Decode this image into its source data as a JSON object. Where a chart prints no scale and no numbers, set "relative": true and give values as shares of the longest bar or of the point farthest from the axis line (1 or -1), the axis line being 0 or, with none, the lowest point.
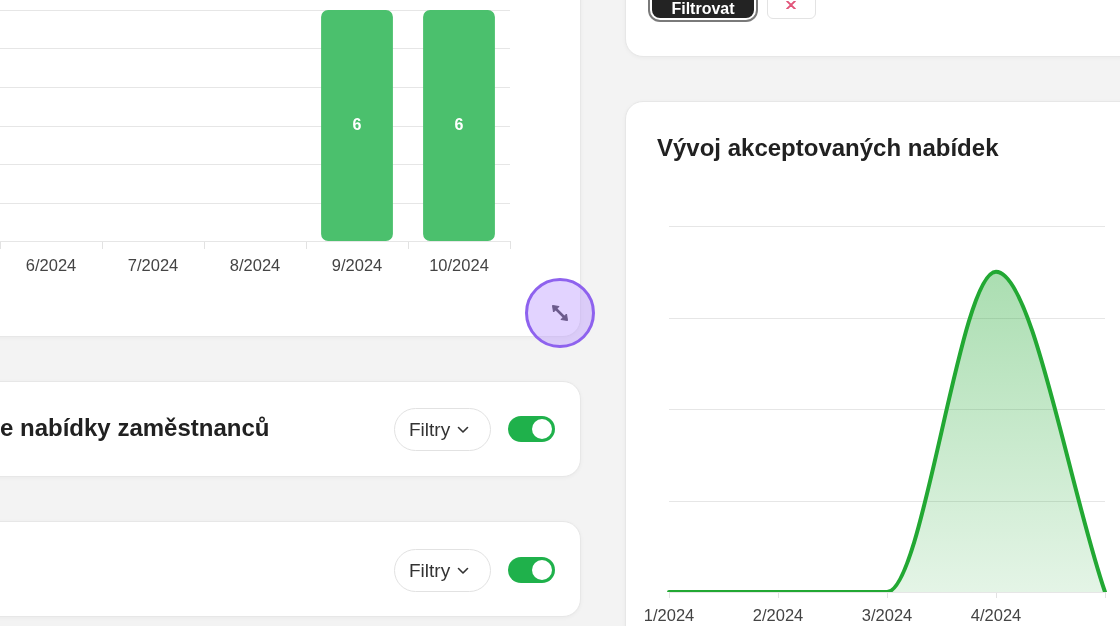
{
  "chart_data": [
    {
      "type": "bar",
      "categories": [
        "6/2024",
        "7/2024",
        "8/2024",
        "9/2024",
        "10/2024"
      ],
      "values": [
        null,
        null,
        null,
        6,
        6
      ],
      "color": "#4bc06d",
      "data_labels": true,
      "grid": "y",
      "tick_labels": "x"
    },
    {
      "type": "other",
      "annotations": [
        "Filtrovat"
      ]
    },
    {
      "type": "area",
      "title": "Vývoj akceptovaných nabídek",
      "categories": [
        "1/2024",
        "2/2024",
        "3/2024",
        "4/2024",
        null
      ],
      "values": [
        0,
        0,
        0,
        1,
        0
      ],
      "color": "#22a833",
      "relative": true,
      "grid": "y"
    },
    {
      "type": "other",
      "title": "e nabídky zaměstnanců",
      "annotations": [
        "Filtry"
      ]
    },
    {
      "type": "other",
      "annotations": [
        "Filtry"
      ]
    }
  ]
}
